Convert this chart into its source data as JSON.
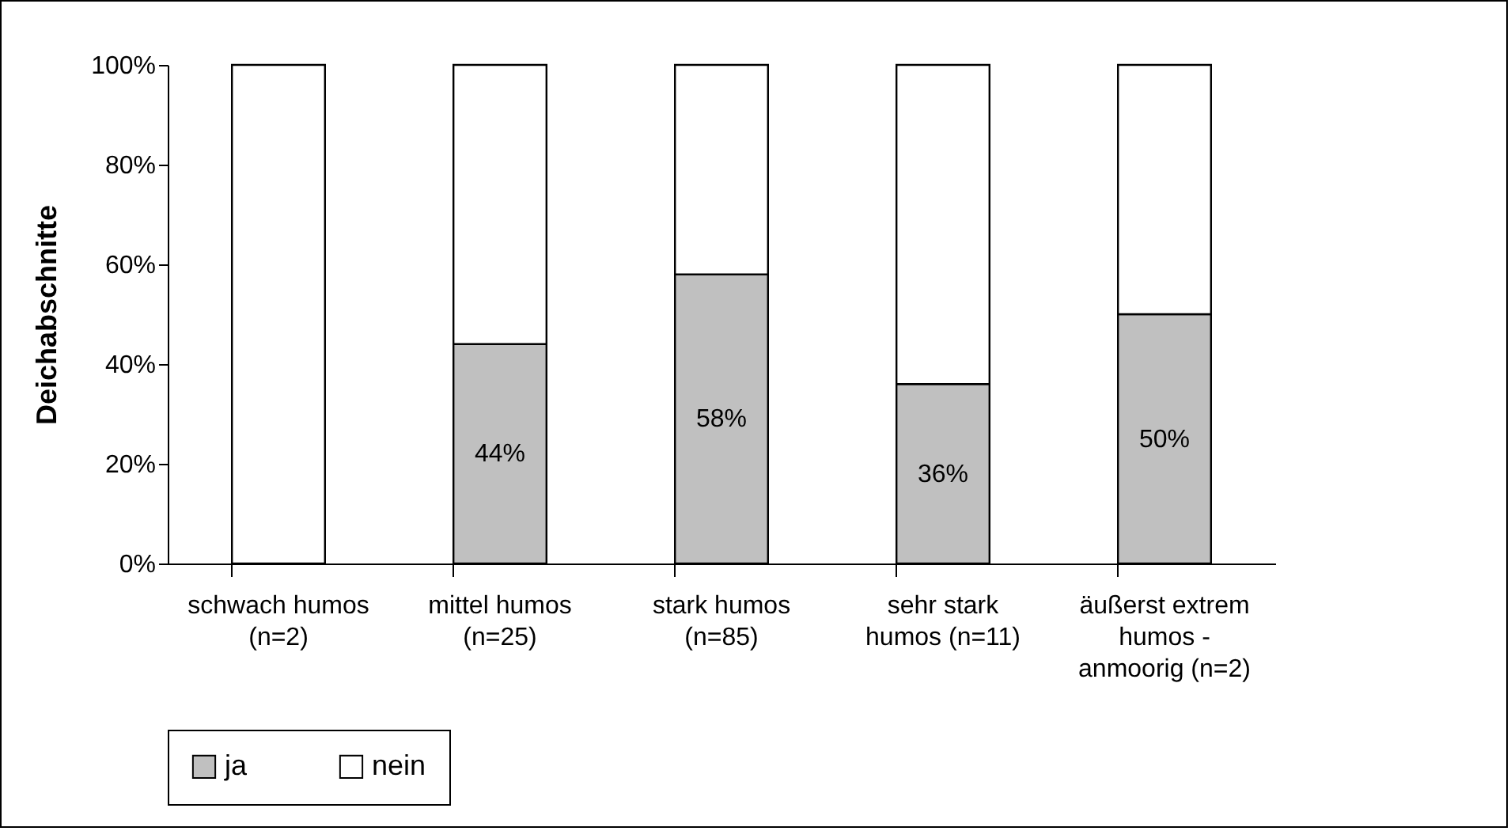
{
  "chart_data": {
    "type": "bar",
    "stacked": true,
    "ylabel": "Deichabschnitte",
    "categories": [
      "schwach humos (n=2)",
      "mittel humos (n=25)",
      "stark humos (n=85)",
      "sehr stark humos (n=11)",
      "äußerst extrem humos - anmoorig (n=2)"
    ],
    "series": [
      {
        "name": "ja",
        "color": "#c0c0c0",
        "values": [
          0,
          44,
          58,
          36,
          50
        ],
        "value_labels": [
          null,
          "44%",
          "58%",
          "36%",
          "50%"
        ]
      },
      {
        "name": "nein",
        "color": "#ffffff",
        "values": [
          100,
          56,
          42,
          64,
          50
        ]
      }
    ],
    "ylim": [
      0,
      100
    ],
    "yticks": [
      {
        "value": 0,
        "label": "0%"
      },
      {
        "value": 20,
        "label": "20%"
      },
      {
        "value": 40,
        "label": "40%"
      },
      {
        "value": 60,
        "label": "60%"
      },
      {
        "value": 80,
        "label": "80%"
      },
      {
        "value": 100,
        "label": "100%"
      }
    ],
    "grid": false,
    "legend": "bottom"
  }
}
